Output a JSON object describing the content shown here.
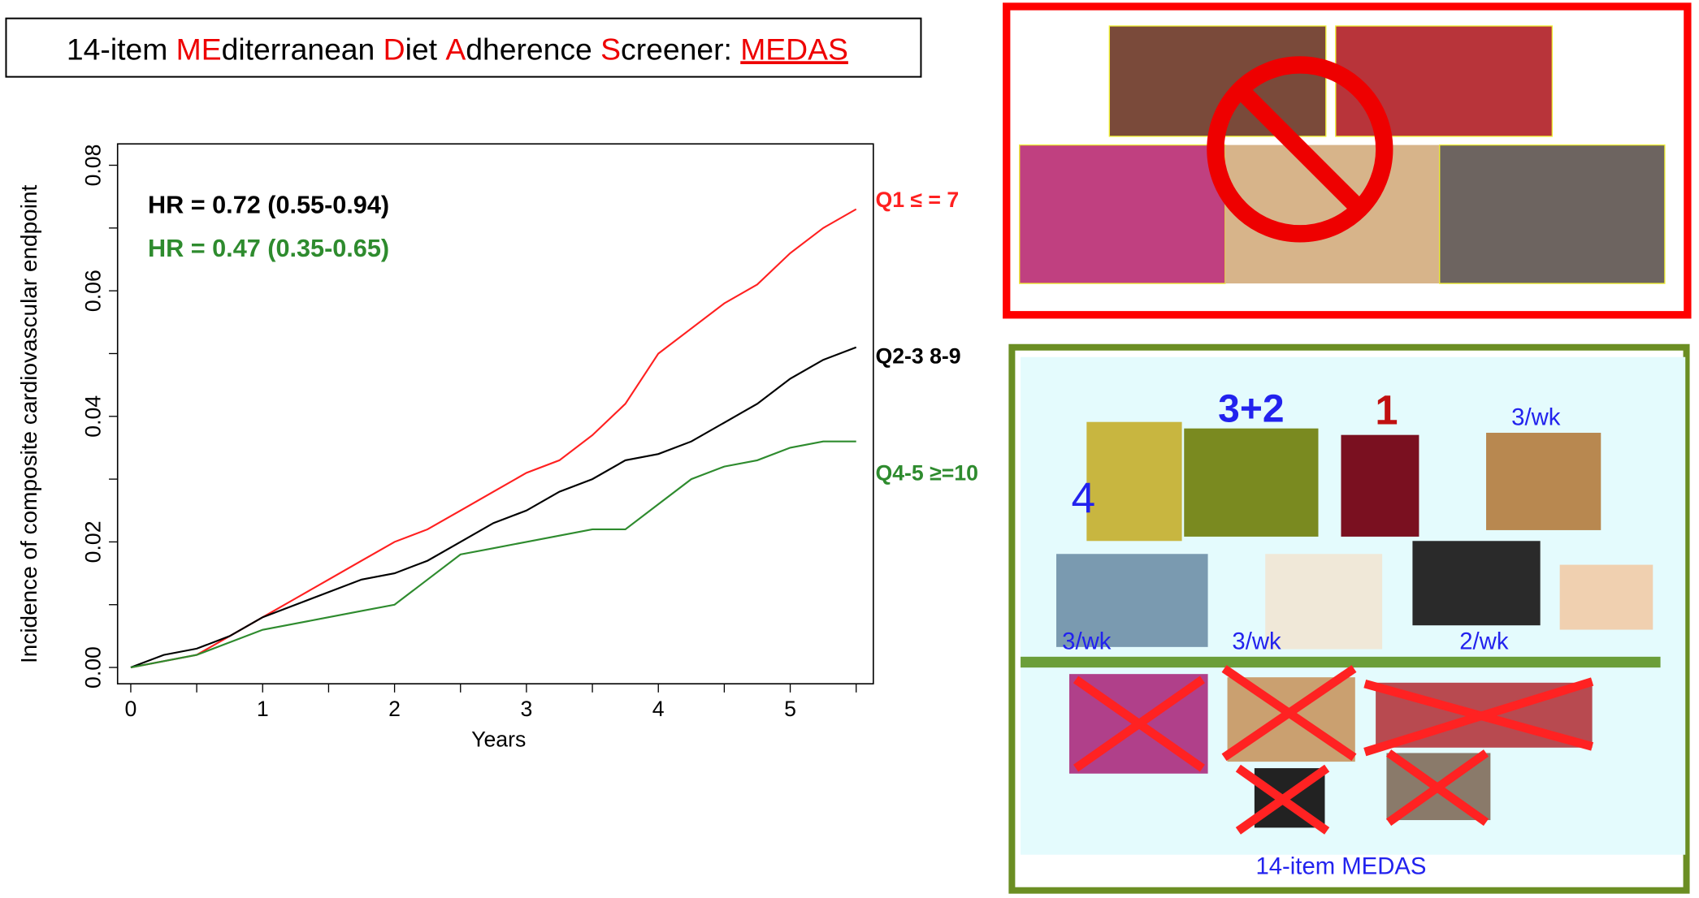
{
  "banner": [
    "14-item ",
    "ME",
    "diterranean ",
    "D",
    "iet ",
    "A",
    "dherence ",
    "S",
    "creener: ",
    "MEDAS"
  ],
  "panels": {
    "recommended": [
      "4",
      "3+2",
      "1",
      "3/wk",
      "3/wk",
      "3/wk",
      "2/wk"
    ],
    "caption": "14-item MEDAS"
  },
  "chart_data": {
    "type": "line",
    "x_label": "Years",
    "y_label": "Incidence of composite cardiovascular endpoint",
    "annotations": [
      {
        "text": "HR = 0.72 (0.55-0.94)",
        "color": "#000000"
      },
      {
        "text": "HR = 0.47 (0.35-0.65)",
        "color": "#2e8b2e"
      }
    ],
    "x": [
      0,
      0.25,
      0.5,
      0.75,
      1,
      1.25,
      1.5,
      1.75,
      2,
      2.25,
      2.5,
      2.75,
      3,
      3.25,
      3.5,
      3.75,
      4,
      4.25,
      4.5,
      4.75,
      5,
      5.25,
      5.5
    ],
    "series": [
      {
        "name": "Q1 ≤ = 7",
        "color": "#ff2020",
        "values": [
          0,
          0.001,
          0.002,
          0.005,
          0.008,
          0.011,
          0.014,
          0.017,
          0.02,
          0.022,
          0.025,
          0.028,
          0.031,
          0.033,
          0.037,
          0.042,
          0.05,
          0.054,
          0.058,
          0.061,
          0.066,
          0.07,
          0.073
        ]
      },
      {
        "name": "Q2-3 8-9",
        "color": "#000000",
        "values": [
          0,
          0.002,
          0.003,
          0.005,
          0.008,
          0.01,
          0.012,
          0.014,
          0.015,
          0.017,
          0.02,
          0.023,
          0.025,
          0.028,
          0.03,
          0.033,
          0.034,
          0.036,
          0.039,
          0.042,
          0.046,
          0.049,
          0.051
        ]
      },
      {
        "name": "Q4-5 ≥=10",
        "color": "#2e8b2e",
        "values": [
          0,
          0.001,
          0.002,
          0.004,
          0.006,
          0.007,
          0.008,
          0.009,
          0.01,
          0.014,
          0.018,
          0.019,
          0.02,
          0.021,
          0.022,
          0.022,
          0.026,
          0.03,
          0.032,
          0.033,
          0.035,
          0.036,
          0.036
        ]
      }
    ],
    "xlim": [
      -0.1,
      5.63
    ],
    "xticks": [
      0,
      1,
      2,
      3,
      4,
      5
    ],
    "ylim": [
      -0.0026,
      0.0834
    ],
    "yticks": [
      {
        "value": 0,
        "label": "0.00"
      },
      0.02,
      0.04,
      0.06,
      0.08
    ],
    "grid": false
  }
}
